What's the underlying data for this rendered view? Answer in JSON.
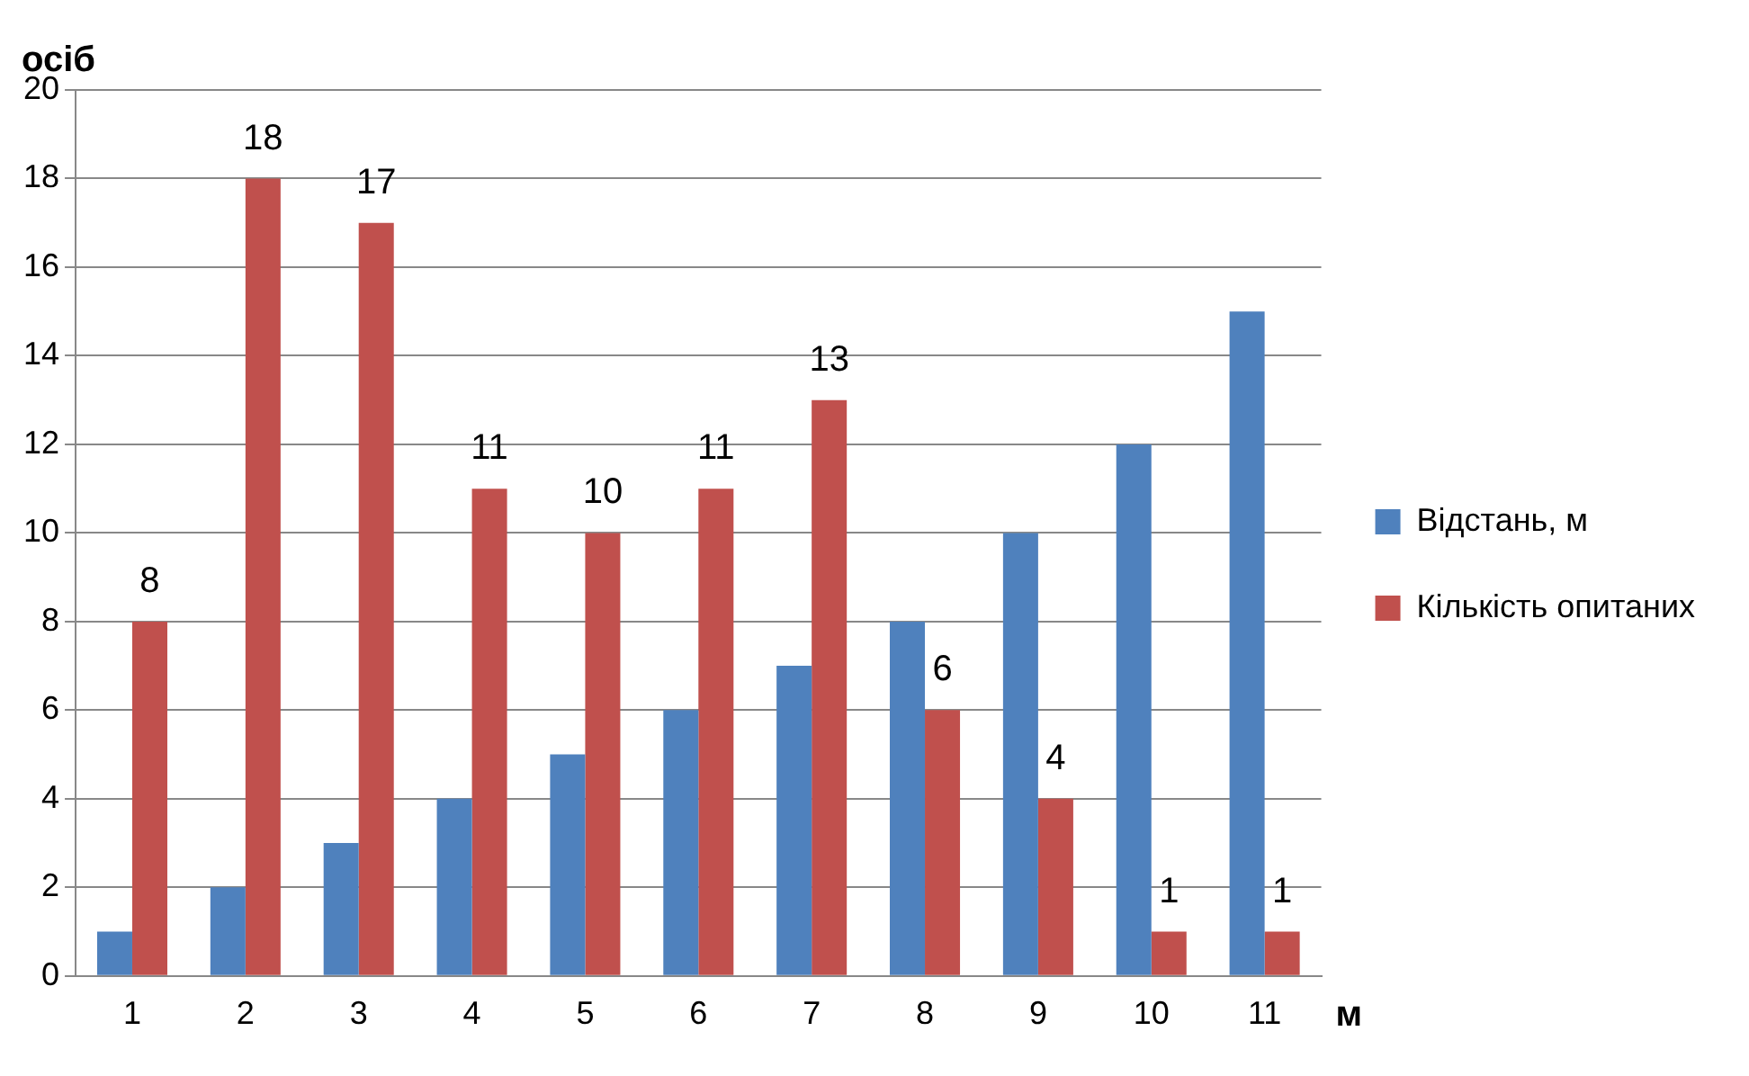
{
  "chart_data": {
    "type": "bar",
    "ylabel": "осіб",
    "xlabel": "м",
    "categories": [
      "1",
      "2",
      "3",
      "4",
      "5",
      "6",
      "7",
      "8",
      "9",
      "10",
      "11"
    ],
    "series": [
      {
        "name": "Відстань, м",
        "color": "#4f81bd",
        "values": [
          1,
          2,
          3,
          4,
          5,
          6,
          7,
          8,
          10,
          12,
          15
        ]
      },
      {
        "name": "Кількість опитаних",
        "color": "#c0504d",
        "values": [
          8,
          18,
          17,
          11,
          10,
          11,
          13,
          6,
          4,
          1,
          1
        ],
        "value_labels": [
          "8",
          "18",
          "17",
          "11",
          "10",
          "11",
          "13",
          "6",
          "4",
          "1",
          "1"
        ]
      }
    ],
    "ylim": [
      0,
      20
    ],
    "yticks": [
      0,
      2,
      4,
      6,
      8,
      10,
      12,
      14,
      16,
      18,
      20
    ],
    "grid": "y",
    "legend": "right"
  }
}
